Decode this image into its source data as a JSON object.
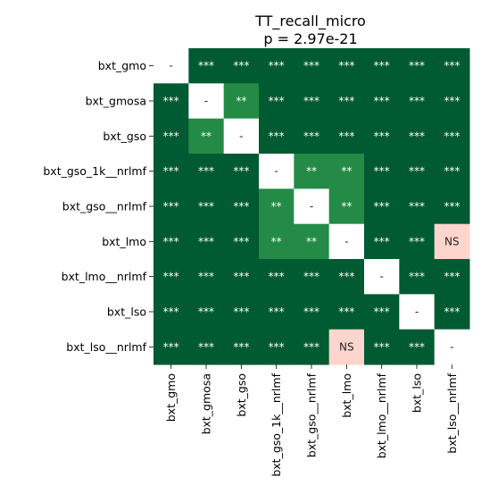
{
  "chart_data": {
    "type": "heatmap",
    "title": "TT_recall_micro",
    "subtitle": "p = 2.97e-21",
    "row_labels": [
      "bxt_gmo",
      "bxt_gmosa",
      "bxt_gso",
      "bxt_gso_1k__nrlmf",
      "bxt_gso__nrlmf",
      "bxt_lmo",
      "bxt_lmo__nrlmf",
      "bxt_lso",
      "bxt_lso__nrlmf"
    ],
    "col_labels": [
      "bxt_gmo",
      "bxt_gmosa",
      "bxt_gso",
      "bxt_gso_1k__nrlmf",
      "bxt_gso__nrlmf",
      "bxt_lmo",
      "bxt_lmo__nrlmf",
      "bxt_lso",
      "bxt_lso__nrlmf"
    ],
    "cells": [
      [
        "-",
        "***",
        "***",
        "***",
        "***",
        "***",
        "***",
        "***",
        "***"
      ],
      [
        "***",
        "-",
        "**",
        "***",
        "***",
        "***",
        "***",
        "***",
        "***"
      ],
      [
        "***",
        "**",
        "-",
        "***",
        "***",
        "***",
        "***",
        "***",
        "***"
      ],
      [
        "***",
        "***",
        "***",
        "-",
        "**",
        "**",
        "***",
        "***",
        "***"
      ],
      [
        "***",
        "***",
        "***",
        "**",
        "-",
        "**",
        "***",
        "***",
        "***"
      ],
      [
        "***",
        "***",
        "***",
        "**",
        "**",
        "-",
        "***",
        "***",
        "NS"
      ],
      [
        "***",
        "***",
        "***",
        "***",
        "***",
        "***",
        "-",
        "***",
        "***"
      ],
      [
        "***",
        "***",
        "***",
        "***",
        "***",
        "***",
        "***",
        "-",
        "***"
      ],
      [
        "***",
        "***",
        "***",
        "***",
        "***",
        "NS",
        "***",
        "***",
        "-"
      ]
    ],
    "colors": {
      "***": "#005a32",
      "**": "#238b45",
      "NS": "#fdd5cc",
      "-": "#ffffff"
    },
    "text_colors": {
      "***": "#ffffff",
      "**": "#ffffff",
      "NS": "#262626",
      "-": "#262626"
    },
    "colorbar": false
  }
}
